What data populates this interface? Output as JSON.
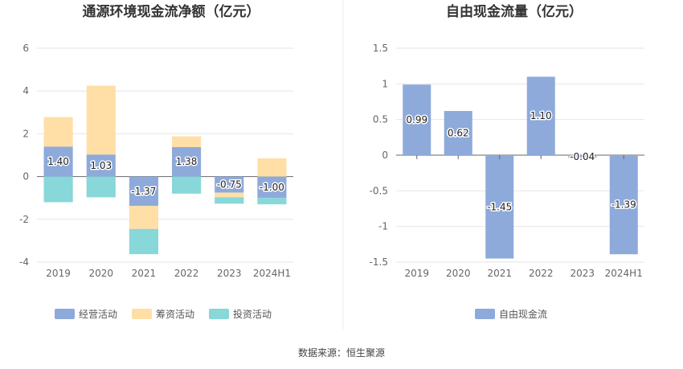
{
  "source_text": "数据来源：恒生聚源",
  "chart_data": [
    {
      "type": "bar",
      "stacked": true,
      "title": "通源环境现金流净额（亿元）",
      "categories": [
        "2019",
        "2020",
        "2021",
        "2022",
        "2023",
        "2024H1"
      ],
      "y_ticks": [
        "6",
        "4",
        "2",
        "0",
        "-2",
        "-4"
      ],
      "ylim": [
        -4,
        6
      ],
      "grid": true,
      "legend_position": "bottom",
      "series": [
        {
          "name": "经营活动",
          "color": "#8eaadb",
          "values": [
            1.4,
            1.03,
            -1.37,
            1.38,
            -0.75,
            -1.0
          ],
          "labels": [
            "1.40",
            "1.03",
            "-1.37",
            "1.38",
            "-0.75",
            "-1.00"
          ]
        },
        {
          "name": "筹资活动",
          "color": "#ffdfa6",
          "values": [
            1.38,
            3.22,
            -1.08,
            0.5,
            -0.22,
            0.85
          ],
          "labels": []
        },
        {
          "name": "投资活动",
          "color": "#88d7d9",
          "values": [
            -1.2,
            -0.97,
            -1.18,
            -0.8,
            -0.3,
            -0.3
          ],
          "labels": []
        }
      ]
    },
    {
      "type": "bar",
      "title": "自由现金流量（亿元）",
      "categories": [
        "2019",
        "2020",
        "2021",
        "2022",
        "2023",
        "2024H1"
      ],
      "y_ticks": [
        "1.5",
        "1",
        "0.5",
        "0",
        "-0.5",
        "-1",
        "-1.5"
      ],
      "ylim": [
        -1.5,
        1.5
      ],
      "grid": true,
      "legend_position": "bottom",
      "series": [
        {
          "name": "自由现金流",
          "color": "#8eaadb",
          "values": [
            0.99,
            0.62,
            -1.45,
            1.1,
            -0.04,
            -1.39
          ],
          "labels": [
            "0.99",
            "0.62",
            "-1.45",
            "1.10",
            "-0.04",
            "-1.39"
          ]
        }
      ]
    }
  ]
}
